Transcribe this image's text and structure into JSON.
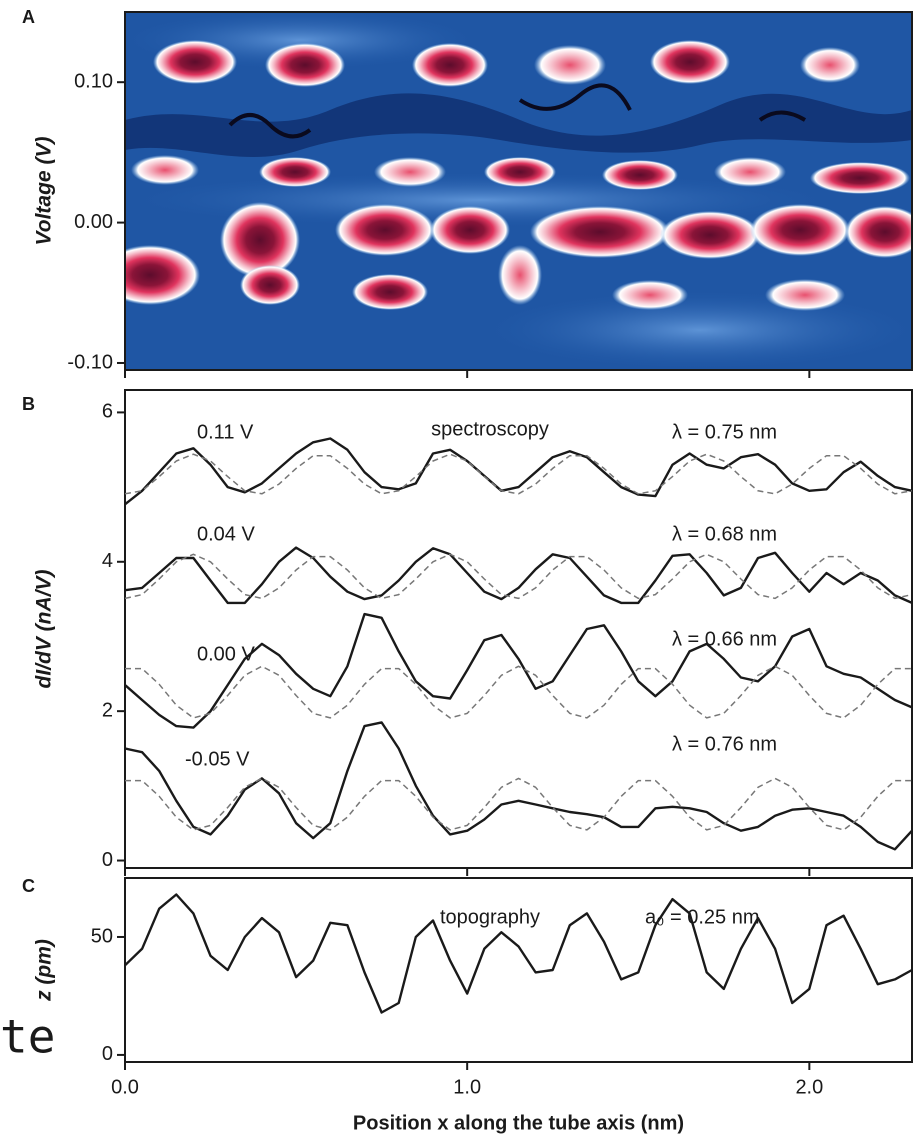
{
  "chart_data": [
    {
      "type": "heatmap",
      "panel_label": "A",
      "y_label": "Voltage (V)",
      "xlim": [
        0,
        2.3
      ],
      "xticks": [
        0,
        1,
        2
      ],
      "ylim": [
        -0.105,
        0.15
      ],
      "yticks": [
        {
          "value": -0.1,
          "label": "-0.10"
        },
        {
          "value": 0,
          "label": "0.00"
        },
        {
          "value": 0.1,
          "label": "0.10"
        }
      ]
    },
    {
      "type": "line",
      "panel_label": "B",
      "y_label": "dI/dV (nA/V)",
      "annotation": "spectroscopy",
      "xlim": [
        0,
        2.3
      ],
      "xticks": [
        0,
        1,
        2
      ],
      "ylim": [
        -0.1,
        6.3
      ],
      "yticks": [
        0,
        2,
        4,
        6
      ],
      "x": [
        0,
        0.05,
        0.1,
        0.15,
        0.2,
        0.25,
        0.3,
        0.35,
        0.4,
        0.45,
        0.5,
        0.55,
        0.6,
        0.65,
        0.7,
        0.75,
        0.8,
        0.85,
        0.9,
        0.95,
        1,
        1.05,
        1.1,
        1.15,
        1.2,
        1.25,
        1.3,
        1.35,
        1.4,
        1.45,
        1.5,
        1.55,
        1.6,
        1.65,
        1.7,
        1.75,
        1.8,
        1.85,
        1.9,
        1.95,
        2,
        2.05,
        2.1,
        2.15,
        2.2,
        2.25,
        2.3
      ],
      "series": [
        {
          "name": "0.11 V",
          "note": "λ = 0.75 nm",
          "color": "#1a1a1a",
          "style": "solid",
          "values": [
            4.77,
            4.95,
            5.2,
            5.45,
            5.52,
            5.3,
            5.0,
            4.93,
            5.05,
            5.25,
            5.45,
            5.6,
            5.65,
            5.5,
            5.2,
            5.0,
            4.97,
            5.05,
            5.45,
            5.5,
            5.35,
            5.15,
            4.95,
            5.0,
            5.2,
            5.4,
            5.48,
            5.4,
            5.2,
            5.0,
            4.9,
            4.88,
            5.3,
            5.45,
            5.3,
            5.25,
            5.4,
            5.44,
            5.3,
            5.05,
            4.95,
            4.97,
            5.2,
            5.34,
            5.15,
            5.0,
            4.95
          ]
        },
        {
          "color": "#777777",
          "style": "dashed",
          "values": [
            4.91,
            4.95,
            5.14,
            5.35,
            5.44,
            5.35,
            5.14,
            4.95,
            4.91,
            5.04,
            5.25,
            5.42,
            5.42,
            5.25,
            5.04,
            4.91,
            4.95,
            5.14,
            5.35,
            5.44,
            5.35,
            5.14,
            4.95,
            4.91,
            5.04,
            5.25,
            5.42,
            5.42,
            5.25,
            5.04,
            4.91,
            4.95,
            5.14,
            5.35,
            5.44,
            5.35,
            5.14,
            4.95,
            4.91,
            5.04,
            5.25,
            5.42,
            5.42,
            5.25,
            5.04,
            4.91,
            4.95
          ]
        },
        {
          "name": "0.04 V",
          "note": "λ = 0.68 nm",
          "color": "#1a1a1a",
          "style": "solid",
          "values": [
            3.62,
            3.65,
            3.85,
            4.05,
            4.05,
            3.75,
            3.45,
            3.45,
            3.7,
            4.0,
            4.19,
            4.05,
            3.8,
            3.6,
            3.5,
            3.55,
            3.75,
            4.0,
            4.18,
            4.1,
            3.85,
            3.6,
            3.5,
            3.65,
            3.9,
            4.1,
            4.05,
            3.8,
            3.55,
            3.45,
            3.45,
            3.75,
            4.08,
            4.1,
            3.85,
            3.55,
            3.65,
            4.05,
            4.12,
            3.85,
            3.6,
            3.85,
            3.7,
            3.85,
            3.75,
            3.55,
            3.45
          ]
        },
        {
          "color": "#777777",
          "style": "dashed",
          "values": [
            3.51,
            3.56,
            3.77,
            4.0,
            4.1,
            4.0,
            3.77,
            3.56,
            3.51,
            3.65,
            3.89,
            4.07,
            4.07,
            3.89,
            3.65,
            3.51,
            3.56,
            3.77,
            4.0,
            4.1,
            4.0,
            3.77,
            3.56,
            3.51,
            3.65,
            3.89,
            4.07,
            4.07,
            3.89,
            3.65,
            3.51,
            3.56,
            3.77,
            4.0,
            4.1,
            4.0,
            3.77,
            3.56,
            3.51,
            3.65,
            3.89,
            4.07,
            4.07,
            3.89,
            3.65,
            3.51,
            3.56
          ]
        },
        {
          "name": "0.00 V",
          "note": "λ = 0.66 nm",
          "color": "#1a1a1a",
          "style": "solid",
          "values": [
            2.35,
            2.15,
            1.95,
            1.8,
            1.78,
            2.0,
            2.35,
            2.7,
            2.9,
            2.75,
            2.5,
            2.3,
            2.2,
            2.6,
            3.3,
            3.25,
            2.8,
            2.4,
            2.2,
            2.17,
            2.55,
            2.95,
            3.02,
            2.7,
            2.3,
            2.4,
            2.75,
            3.1,
            3.15,
            2.8,
            2.4,
            2.2,
            2.4,
            2.8,
            2.9,
            2.7,
            2.45,
            2.4,
            2.6,
            3.0,
            3.1,
            2.6,
            2.5,
            2.45,
            2.3,
            2.15,
            2.05
          ]
        },
        {
          "color": "#777777",
          "style": "dashed",
          "values": [
            2.57,
            2.57,
            2.36,
            2.08,
            1.91,
            1.97,
            2.21,
            2.48,
            2.6,
            2.48,
            2.21,
            1.97,
            1.91,
            2.08,
            2.36,
            2.57,
            2.57,
            2.36,
            2.08,
            1.91,
            1.97,
            2.21,
            2.48,
            2.6,
            2.48,
            2.21,
            1.97,
            1.91,
            2.08,
            2.36,
            2.57,
            2.57,
            2.36,
            2.08,
            1.91,
            1.97,
            2.21,
            2.48,
            2.6,
            2.48,
            2.21,
            1.97,
            1.91,
            2.08,
            2.36,
            2.57,
            2.57
          ]
        },
        {
          "name": "-0.05 V",
          "note": "λ = 0.76 nm",
          "color": "#1a1a1a",
          "style": "solid",
          "values": [
            1.5,
            1.45,
            1.2,
            0.8,
            0.45,
            0.35,
            0.6,
            0.95,
            1.1,
            0.9,
            0.5,
            0.3,
            0.5,
            1.2,
            1.8,
            1.85,
            1.5,
            1.0,
            0.6,
            0.35,
            0.4,
            0.55,
            0.75,
            0.8,
            0.75,
            0.7,
            0.65,
            0.62,
            0.58,
            0.45,
            0.45,
            0.7,
            0.72,
            0.7,
            0.65,
            0.5,
            0.4,
            0.45,
            0.6,
            0.68,
            0.7,
            0.65,
            0.6,
            0.45,
            0.25,
            0.15,
            0.4
          ]
        },
        {
          "color": "#777777",
          "style": "dashed",
          "values": [
            1.07,
            1.07,
            0.86,
            0.58,
            0.41,
            0.47,
            0.71,
            0.98,
            1.1,
            0.98,
            0.71,
            0.47,
            0.41,
            0.58,
            0.86,
            1.07,
            1.07,
            0.86,
            0.58,
            0.41,
            0.47,
            0.71,
            0.98,
            1.1,
            0.98,
            0.71,
            0.47,
            0.41,
            0.58,
            0.86,
            1.07,
            1.07,
            0.86,
            0.58,
            0.41,
            0.47,
            0.71,
            0.98,
            1.1,
            0.98,
            0.71,
            0.47,
            0.41,
            0.58,
            0.86,
            1.07,
            1.07
          ]
        }
      ]
    },
    {
      "type": "line",
      "panel_label": "C",
      "y_label": "z (pm)",
      "annotation": "topography",
      "annotation2": "a₀ = 0.25 nm",
      "x_label": "Position x along the tube axis (nm)",
      "xlim": [
        0,
        2.3
      ],
      "xticks": [
        {
          "value": 0,
          "label": "0.0"
        },
        {
          "value": 1,
          "label": "1.0"
        },
        {
          "value": 2,
          "label": "2.0"
        }
      ],
      "ylim": [
        -3,
        75
      ],
      "yticks": [
        0,
        50
      ],
      "x": [
        0,
        0.05,
        0.1,
        0.15,
        0.2,
        0.25,
        0.3,
        0.35,
        0.4,
        0.45,
        0.5,
        0.55,
        0.6,
        0.65,
        0.7,
        0.75,
        0.8,
        0.85,
        0.9,
        0.95,
        1,
        1.05,
        1.1,
        1.15,
        1.2,
        1.25,
        1.3,
        1.35,
        1.4,
        1.45,
        1.5,
        1.55,
        1.6,
        1.65,
        1.7,
        1.75,
        1.8,
        1.85,
        1.9,
        1.95,
        2,
        2.05,
        2.1,
        2.15,
        2.2,
        2.25,
        2.3
      ],
      "series": [
        {
          "color": "#1a1a1a",
          "style": "solid",
          "values": [
            38,
            45,
            62,
            68,
            60,
            42,
            36,
            50,
            58,
            52,
            33,
            40,
            56,
            55,
            35,
            18,
            22,
            50,
            57,
            40,
            26,
            45,
            52,
            46,
            35,
            36,
            55,
            60,
            48,
            32,
            35,
            55,
            66,
            60,
            35,
            28,
            45,
            58,
            45,
            22,
            28,
            55,
            59,
            45,
            30,
            32,
            36
          ]
        }
      ]
    }
  ],
  "edge_text": "te"
}
